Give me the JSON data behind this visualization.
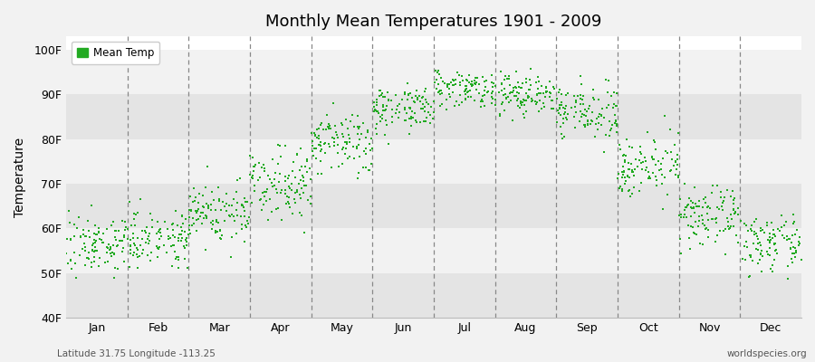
{
  "title": "Monthly Mean Temperatures 1901 - 2009",
  "ylabel": "Temperature",
  "yticks": [
    40,
    50,
    60,
    70,
    80,
    90,
    100
  ],
  "ytick_labels": [
    "40F",
    "50F",
    "60F",
    "70F",
    "80F",
    "90F",
    "100F"
  ],
  "ylim": [
    40,
    103
  ],
  "months": [
    "Jan",
    "Feb",
    "Mar",
    "Apr",
    "May",
    "Jun",
    "Jul",
    "Aug",
    "Sep",
    "Oct",
    "Nov",
    "Dec"
  ],
  "dot_color": "#22aa22",
  "bg_color": "#f2f2f2",
  "plot_bg_color": "#ffffff",
  "band_light": "#f2f2f2",
  "band_dark": "#e4e4e4",
  "dashed_line_color": "#888888",
  "subtitle_left": "Latitude 31.75 Longitude -113.25",
  "subtitle_right": "worldspecies.org",
  "legend_label": "Mean Temp",
  "monthly_means": [
    56.5,
    58.0,
    63.5,
    70.5,
    79.0,
    87.0,
    91.5,
    90.0,
    86.0,
    74.0,
    62.5,
    56.5
  ],
  "monthly_stds": [
    3.2,
    3.0,
    3.5,
    3.8,
    3.5,
    2.5,
    2.0,
    2.5,
    2.8,
    3.2,
    3.2,
    3.0
  ],
  "n_years": 109
}
